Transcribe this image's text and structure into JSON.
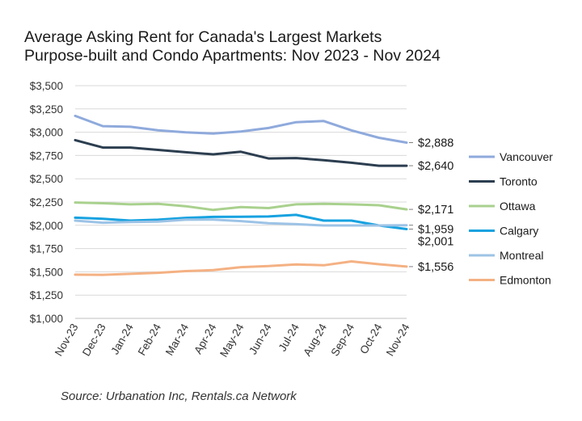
{
  "chart_data": {
    "type": "line",
    "title": "Average Asking Rent for Canada's Largest Markets",
    "subtitle": "Purpose-built and Condo Apartments: Nov 2023 - Nov 2024",
    "source": "Source: Urbanation Inc, Rentals.ca Network",
    "xlabel": "",
    "ylabel": "",
    "ylim": [
      1000,
      3500
    ],
    "yticks": [
      1000,
      1250,
      1500,
      1750,
      2000,
      2250,
      2500,
      2750,
      3000,
      3250,
      3500
    ],
    "ytick_labels": [
      "$1,000",
      "$1,250",
      "$1,500",
      "$1,750",
      "$2,000",
      "$2,250",
      "$2,500",
      "$2,750",
      "$3,000",
      "$3,250",
      "$3,500"
    ],
    "categories": [
      "Nov-23",
      "Dec-23",
      "Jan-24",
      "Feb-24",
      "Mar-24",
      "Apr-24",
      "May-24",
      "Jun-24",
      "Jul-24",
      "Aug-24",
      "Sep-24",
      "Oct-24",
      "Nov-24"
    ],
    "grid": true,
    "legend_position": "right",
    "series": [
      {
        "name": "Vancouver",
        "color": "#8faadc",
        "end_label": "$2,888",
        "values": [
          3175,
          3065,
          3058,
          3020,
          2998,
          2985,
          3008,
          3045,
          3108,
          3120,
          3020,
          2940,
          2888
        ]
      },
      {
        "name": "Toronto",
        "color": "#2c3e50",
        "end_label": "$2,640",
        "values": [
          2915,
          2835,
          2835,
          2810,
          2785,
          2762,
          2790,
          2718,
          2722,
          2700,
          2672,
          2640,
          2640
        ]
      },
      {
        "name": "Ottawa",
        "color": "#a9d18e",
        "end_label": "$2,171",
        "values": [
          2245,
          2237,
          2225,
          2230,
          2205,
          2165,
          2195,
          2185,
          2225,
          2230,
          2225,
          2215,
          2171
        ]
      },
      {
        "name": "Calgary",
        "color": "#17a2e0",
        "end_label": "$1,959",
        "values": [
          2082,
          2070,
          2050,
          2060,
          2080,
          2090,
          2092,
          2095,
          2112,
          2050,
          2050,
          1998,
          1959
        ]
      },
      {
        "name": "Montreal",
        "color": "#9dc3e6",
        "end_label": "$2,001",
        "values": [
          2050,
          2028,
          2035,
          2040,
          2060,
          2062,
          2045,
          2022,
          2012,
          1998,
          1998,
          1998,
          2001
        ]
      },
      {
        "name": "Edmonton",
        "color": "#f4b183",
        "end_label": "$1,556",
        "values": [
          1470,
          1468,
          1478,
          1490,
          1508,
          1518,
          1550,
          1562,
          1580,
          1570,
          1612,
          1582,
          1556
        ]
      }
    ]
  }
}
